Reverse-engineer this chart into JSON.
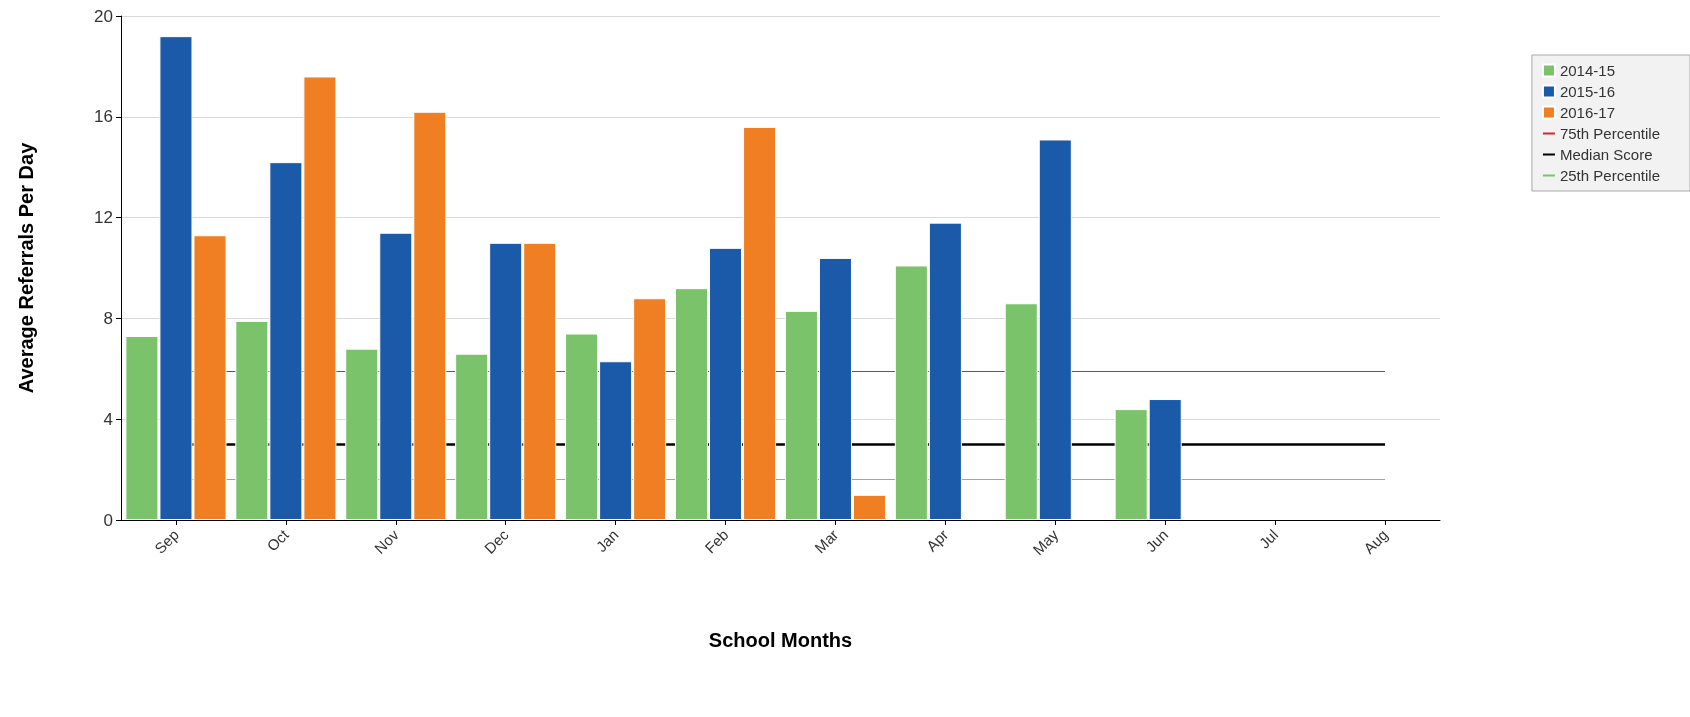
{
  "chart_data": {
    "type": "bar",
    "xlabel": "School Months",
    "ylabel": "Average Referrals Per Day",
    "categories": [
      "Sep",
      "Oct",
      "Nov",
      "Dec",
      "Jan",
      "Feb",
      "Mar",
      "Apr",
      "May",
      "Jun",
      "Jul",
      "Aug"
    ],
    "series": [
      {
        "name": "2014-15",
        "color": "#7ac36a",
        "values": [
          7.3,
          7.9,
          6.8,
          6.6,
          7.4,
          9.2,
          8.3,
          10.1,
          8.6,
          4.4,
          null,
          null
        ]
      },
      {
        "name": "2015-16",
        "color": "#1a5aa8",
        "values": [
          19.2,
          14.2,
          11.4,
          11.0,
          6.3,
          10.8,
          10.4,
          11.8,
          15.1,
          4.8,
          null,
          null
        ]
      },
      {
        "name": "2016-17",
        "color": "#f07f23",
        "values": [
          11.3,
          17.6,
          16.2,
          11.0,
          8.8,
          15.6,
          1.0,
          null,
          null,
          null,
          null,
          null
        ]
      }
    ],
    "ref_lines": [
      {
        "axis": "y",
        "value": 5.9,
        "label": "75th Percentile",
        "color": "#d62728"
      },
      {
        "axis": "y",
        "value": 3.0,
        "label": "Median Score",
        "color": "#000000"
      },
      {
        "axis": "y",
        "value": 1.6,
        "label": "25th Percentile",
        "color": "#7ac36a"
      }
    ],
    "ylim": [
      0,
      20
    ],
    "yticks": [
      0,
      4,
      8,
      12,
      16,
      20
    ],
    "grid": "y",
    "legend": "top right"
  }
}
